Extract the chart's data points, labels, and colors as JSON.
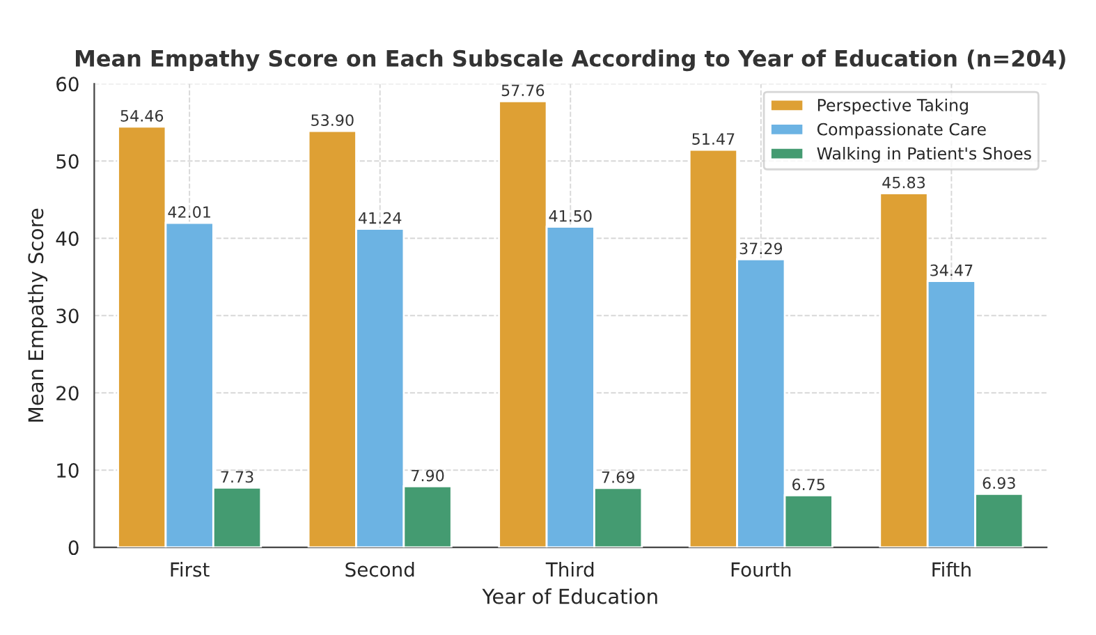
{
  "chart_data": {
    "type": "bar",
    "title": "Mean Empathy Score on Each Subscale According to Year of Education (n=204)",
    "xlabel": "Year of Education",
    "ylabel": "Mean Empathy Score",
    "categories": [
      "First",
      "Second",
      "Third",
      "Fourth",
      "Fifth"
    ],
    "series": [
      {
        "name": "Perspective Taking",
        "color": "#dea034",
        "values": [
          54.46,
          53.9,
          57.76,
          51.47,
          45.83
        ],
        "value_labels": [
          "54.46",
          "53.90",
          "57.76",
          "51.47",
          "45.83"
        ]
      },
      {
        "name": "Compassionate Care",
        "color": "#6cb3e3",
        "values": [
          42.01,
          41.24,
          41.5,
          37.29,
          34.47
        ],
        "value_labels": [
          "42.01",
          "41.24",
          "41.50",
          "37.29",
          "34.47"
        ]
      },
      {
        "name": "Walking in Patient's Shoes",
        "color": "#449b71",
        "values": [
          7.73,
          7.9,
          7.69,
          6.75,
          6.93
        ],
        "value_labels": [
          "7.73",
          "7.90",
          "7.69",
          "6.75",
          "6.93"
        ]
      }
    ],
    "ylim": [
      0,
      60
    ],
    "yticks": [
      0,
      10,
      20,
      30,
      40,
      50,
      60
    ],
    "grid": true,
    "legend": "top right"
  }
}
